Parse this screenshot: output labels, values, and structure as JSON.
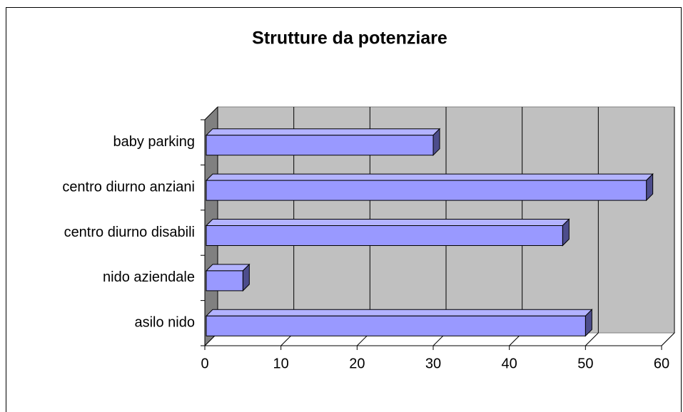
{
  "chart_data": {
    "type": "bar",
    "orientation": "horizontal",
    "title": "Strutture da potenziare",
    "categories": [
      "asilo nido",
      "nido aziendale",
      "centro diurno disabili",
      "centro diurno anziani",
      "baby parking"
    ],
    "values": [
      50,
      5,
      47,
      58,
      30
    ],
    "color": "#9999ff",
    "xlim": [
      0,
      60
    ],
    "xticks": [
      0,
      10,
      20,
      30,
      40,
      50,
      60
    ],
    "grid": true
  }
}
